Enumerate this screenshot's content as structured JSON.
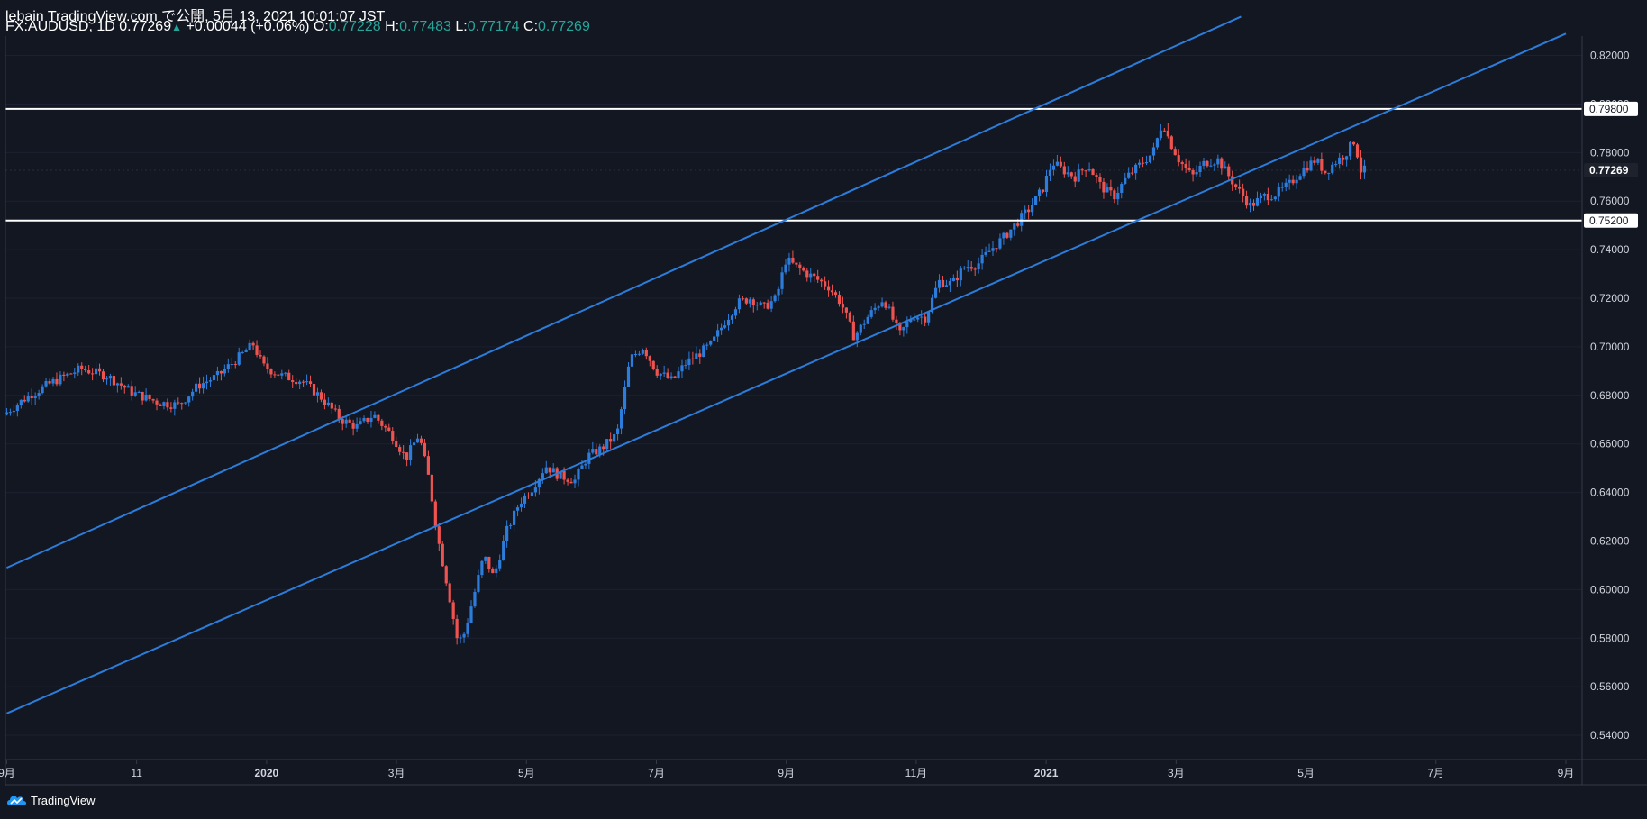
{
  "header": {
    "line1": "lebain TradingView.com で公開, 5月 13, 2021 10:01:07 JST",
    "symbol": "FX:AUDUSD, 1D",
    "last": "0.77269",
    "change_arrow": "▲",
    "change": "+0.00044 (+0.06%)",
    "o_label": "O:",
    "o_value": "0.77228",
    "h_label": "H:",
    "h_value": "0.77483",
    "l_label": "L:",
    "l_value": "0.77174",
    "c_label": "C:",
    "c_value": "0.77269"
  },
  "footer": {
    "brand": "TradingView"
  },
  "colors": {
    "background": "#131722",
    "up": "#2c7ddb",
    "down": "#ef5350",
    "channel": "#2c7ddb",
    "level": "#ffffff",
    "axis_text": "#d1d4dc"
  },
  "chart_data": {
    "type": "candlestick",
    "symbol": "FX:AUDUSD",
    "interval": "1D",
    "ylim": [
      0.53,
      0.828
    ],
    "y_ticks": [
      "0.82000",
      "0.80000",
      "0.78000",
      "0.76000",
      "0.74000",
      "0.72000",
      "0.70000",
      "0.68000",
      "0.66000",
      "0.64000",
      "0.62000",
      "0.60000",
      "0.58000",
      "0.56000",
      "0.54000"
    ],
    "x_ticks": [
      "9月",
      "11",
      "2020",
      "3月",
      "5月",
      "7月",
      "9月",
      "11月",
      "2021",
      "3月",
      "5月",
      "7月",
      "9月"
    ],
    "x_tick_months": [
      -2,
      0,
      2,
      4,
      6,
      8,
      10,
      12,
      14,
      16,
      18,
      20,
      22
    ],
    "x_range_months": [
      -2.02,
      22.25
    ],
    "horizontal_levels": [
      {
        "price": 0.798,
        "label": "0.79800"
      },
      {
        "price": 0.752,
        "label": "0.75200"
      }
    ],
    "last_price_label": "0.77269",
    "last_price": 0.77269,
    "channel_lines": [
      {
        "name": "upper",
        "points": [
          [
            -2.0,
            0.609
          ],
          [
            17.0,
            0.836
          ]
        ]
      },
      {
        "name": "lower",
        "points": [
          [
            -2.0,
            0.549
          ],
          [
            22.0,
            0.829
          ]
        ]
      }
    ],
    "price_path": [
      [
        -2.0,
        0.672
      ],
      [
        -1.6,
        0.68
      ],
      [
        -1.2,
        0.686
      ],
      [
        -0.8,
        0.691
      ],
      [
        -0.4,
        0.688
      ],
      [
        0.0,
        0.681
      ],
      [
        0.4,
        0.677
      ],
      [
        0.7,
        0.676
      ],
      [
        1.0,
        0.684
      ],
      [
        1.3,
        0.688
      ],
      [
        1.6,
        0.695
      ],
      [
        1.85,
        0.701
      ],
      [
        2.0,
        0.692
      ],
      [
        2.3,
        0.688
      ],
      [
        2.6,
        0.686
      ],
      [
        2.9,
        0.679
      ],
      [
        3.2,
        0.67
      ],
      [
        3.45,
        0.667
      ],
      [
        3.7,
        0.672
      ],
      [
        4.0,
        0.663
      ],
      [
        4.2,
        0.654
      ],
      [
        4.4,
        0.664
      ],
      [
        4.55,
        0.646
      ],
      [
        4.7,
        0.62
      ],
      [
        4.85,
        0.6
      ],
      [
        5.0,
        0.578
      ],
      [
        5.1,
        0.582
      ],
      [
        5.25,
        0.598
      ],
      [
        5.4,
        0.614
      ],
      [
        5.55,
        0.605
      ],
      [
        5.75,
        0.624
      ],
      [
        5.95,
        0.636
      ],
      [
        6.15,
        0.642
      ],
      [
        6.35,
        0.651
      ],
      [
        6.55,
        0.647
      ],
      [
        6.8,
        0.645
      ],
      [
        7.0,
        0.655
      ],
      [
        7.2,
        0.658
      ],
      [
        7.45,
        0.664
      ],
      [
        7.65,
        0.695
      ],
      [
        7.85,
        0.7
      ],
      [
        8.05,
        0.69
      ],
      [
        8.3,
        0.686
      ],
      [
        8.5,
        0.693
      ],
      [
        8.7,
        0.697
      ],
      [
        8.9,
        0.701
      ],
      [
        9.1,
        0.71
      ],
      [
        9.3,
        0.718
      ],
      [
        9.5,
        0.72
      ],
      [
        9.7,
        0.716
      ],
      [
        9.9,
        0.72
      ],
      [
        10.05,
        0.736
      ],
      [
        10.2,
        0.733
      ],
      [
        10.45,
        0.729
      ],
      [
        10.7,
        0.725
      ],
      [
        10.9,
        0.718
      ],
      [
        11.1,
        0.704
      ],
      [
        11.3,
        0.712
      ],
      [
        11.55,
        0.72
      ],
      [
        11.8,
        0.705
      ],
      [
        12.0,
        0.713
      ],
      [
        12.2,
        0.712
      ],
      [
        12.4,
        0.727
      ],
      [
        12.6,
        0.726
      ],
      [
        12.8,
        0.733
      ],
      [
        13.0,
        0.734
      ],
      [
        13.2,
        0.74
      ],
      [
        13.4,
        0.745
      ],
      [
        13.6,
        0.751
      ],
      [
        13.8,
        0.757
      ],
      [
        14.0,
        0.765
      ],
      [
        14.15,
        0.776
      ],
      [
        14.3,
        0.773
      ],
      [
        14.5,
        0.77
      ],
      [
        14.7,
        0.775
      ],
      [
        14.9,
        0.766
      ],
      [
        15.1,
        0.762
      ],
      [
        15.3,
        0.77
      ],
      [
        15.5,
        0.775
      ],
      [
        15.7,
        0.78
      ],
      [
        15.85,
        0.793
      ],
      [
        15.95,
        0.785
      ],
      [
        16.1,
        0.777
      ],
      [
        16.3,
        0.77
      ],
      [
        16.5,
        0.776
      ],
      [
        16.7,
        0.777
      ],
      [
        16.85,
        0.771
      ],
      [
        17.0,
        0.765
      ],
      [
        17.2,
        0.758
      ],
      [
        17.4,
        0.762
      ],
      [
        17.6,
        0.763
      ],
      [
        17.8,
        0.767
      ],
      [
        18.0,
        0.773
      ],
      [
        18.2,
        0.777
      ],
      [
        18.35,
        0.772
      ],
      [
        18.5,
        0.776
      ],
      [
        18.65,
        0.779
      ],
      [
        18.8,
        0.785
      ],
      [
        18.9,
        0.7727
      ]
    ]
  }
}
